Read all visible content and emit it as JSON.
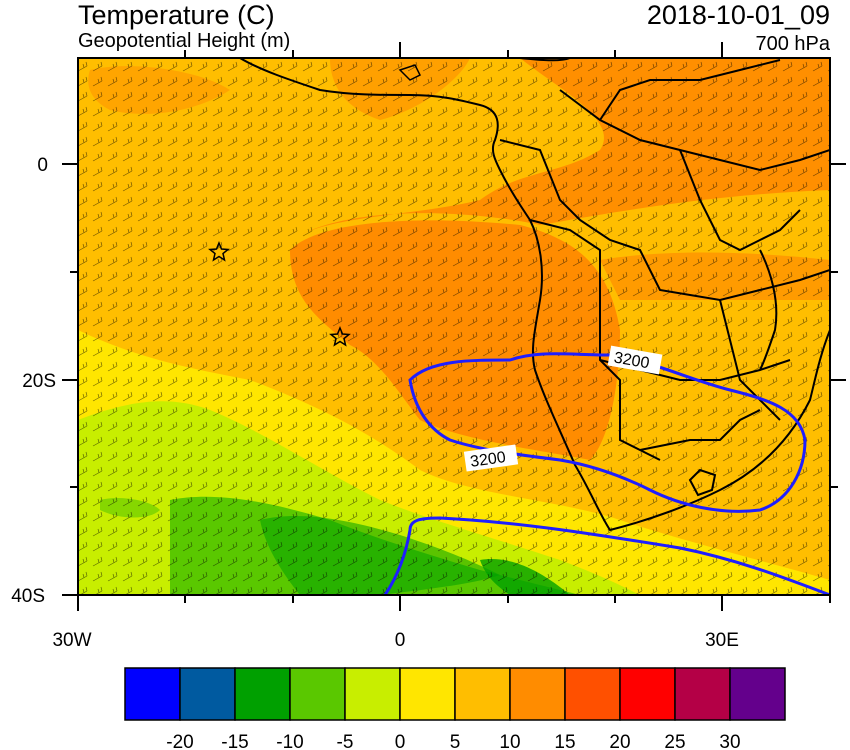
{
  "header": {
    "title": "Temperature (C)",
    "subtitle": "Geopotential Height (m)",
    "datetime": "2018-10-01_09",
    "level": "700 hPa"
  },
  "axes": {
    "y_ticks": [
      "0",
      "20S",
      "40S"
    ],
    "x_ticks": [
      "30W",
      "0",
      "30E"
    ]
  },
  "contours": {
    "label": "3200",
    "color": "#1e1eff"
  },
  "colorbar": {
    "colors": [
      "#0000ff",
      "#005aa0",
      "#00a000",
      "#5ac800",
      "#c8ee00",
      "#ffe600",
      "#ffbe00",
      "#ff8c00",
      "#ff5000",
      "#ff0000",
      "#b40046",
      "#64008c"
    ],
    "labels": [
      "-20",
      "-15",
      "-10",
      "-5",
      "0",
      "5",
      "10",
      "15",
      "20",
      "25",
      "30"
    ]
  },
  "markers": [
    "star",
    "star"
  ]
}
